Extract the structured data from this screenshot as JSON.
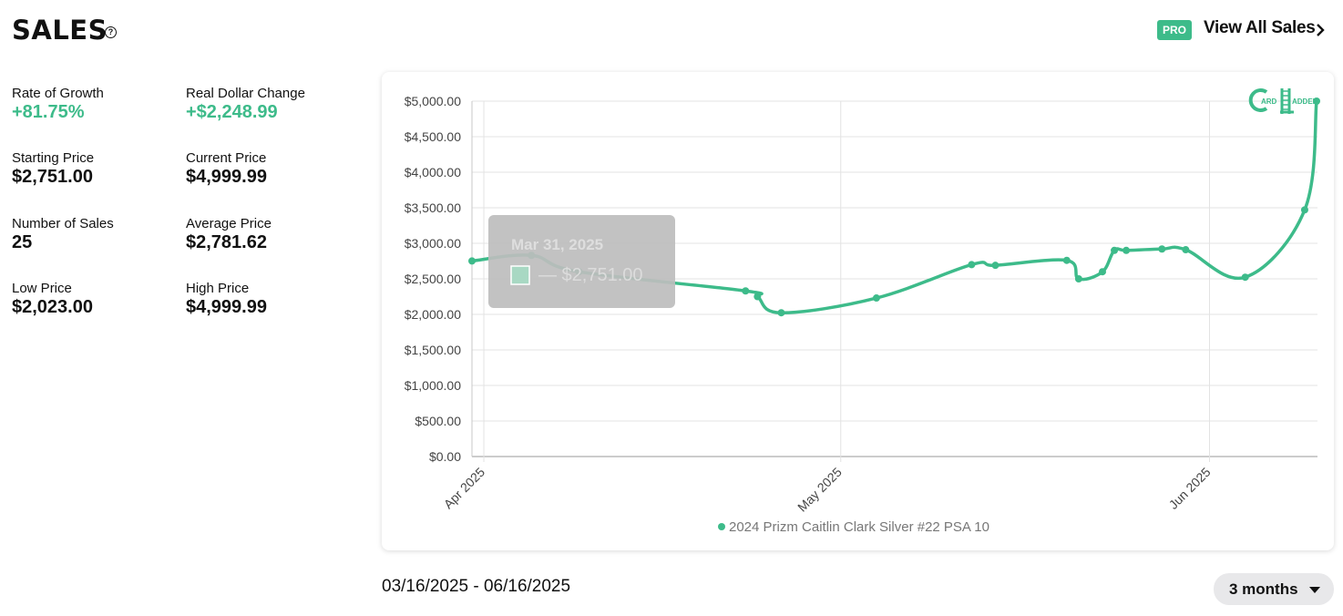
{
  "header": {
    "title": "SALES",
    "help_glyph": "?",
    "pro_badge": "PRO",
    "view_all": "View All Sales"
  },
  "stats": [
    {
      "label": "Rate of Growth",
      "value": "+81.75%",
      "accent": true
    },
    {
      "label": "Real Dollar Change",
      "value": "+$2,248.99",
      "accent": true
    },
    {
      "label": "Starting Price",
      "value": "$2,751.00",
      "accent": false
    },
    {
      "label": "Current Price",
      "value": "$4,999.99",
      "accent": false
    },
    {
      "label": "Number of Sales",
      "value": "25",
      "accent": false
    },
    {
      "label": "Average Price",
      "value": "$2,781.62",
      "accent": false
    },
    {
      "label": "Low Price",
      "value": "$2,023.00",
      "accent": false
    },
    {
      "label": "High Price",
      "value": "$4,999.99",
      "accent": false
    }
  ],
  "colors": {
    "accent": "#3dbb8a",
    "line": "#3dbb8a",
    "grid": "#e3e3e3",
    "tooltip_bg": "#bdbdbd"
  },
  "logo_text": "CARD LADDER",
  "tooltip": {
    "date": "Mar 31, 2025",
    "value_text": "— $2,751.00"
  },
  "chart_data": {
    "type": "line",
    "y_ticks": [
      "$5,000.00",
      "$4,500.00",
      "$4,000.00",
      "$3,500.00",
      "$3,000.00",
      "$2,500.00",
      "$2,000.00",
      "$1,500.00",
      "$1,000.00",
      "$500.00",
      "$0.00"
    ],
    "ylim": [
      0,
      5000
    ],
    "x_ticks": [
      {
        "label": "Apr 2025",
        "date": "2025-04-01"
      },
      {
        "label": "May 2025",
        "date": "2025-05-01"
      },
      {
        "label": "Jun 2025",
        "date": "2025-06-01"
      }
    ],
    "xlim": [
      "2025-03-31",
      "2025-06-10"
    ],
    "grid": true,
    "legend_position": "bottom",
    "series": [
      {
        "name": "2024 Prizm Caitlin Clark Silver #22 PSA 10",
        "points": [
          {
            "x": "2025-03-31",
            "y": 2751
          },
          {
            "x": "2025-04-05",
            "y": 2830
          },
          {
            "x": "2025-04-09",
            "y": 2600
          },
          {
            "x": "2025-04-23",
            "y": 2330
          },
          {
            "x": "2025-04-24",
            "y": 2250
          },
          {
            "x": "2025-04-26",
            "y": 2023
          },
          {
            "x": "2025-05-04",
            "y": 2230
          },
          {
            "x": "2025-05-12",
            "y": 2700
          },
          {
            "x": "2025-05-14",
            "y": 2690
          },
          {
            "x": "2025-05-20",
            "y": 2760
          },
          {
            "x": "2025-05-21",
            "y": 2500
          },
          {
            "x": "2025-05-23",
            "y": 2600
          },
          {
            "x": "2025-05-24",
            "y": 2900
          },
          {
            "x": "2025-05-25",
            "y": 2900
          },
          {
            "x": "2025-05-28",
            "y": 2920
          },
          {
            "x": "2025-05-30",
            "y": 2910
          },
          {
            "x": "2025-06-04",
            "y": 2523
          },
          {
            "x": "2025-06-09",
            "y": 3470
          },
          {
            "x": "2025-06-10",
            "y": 4999.99
          }
        ]
      }
    ]
  },
  "footer": {
    "date_range": "03/16/2025 - 06/16/2025",
    "period": "3 months"
  }
}
